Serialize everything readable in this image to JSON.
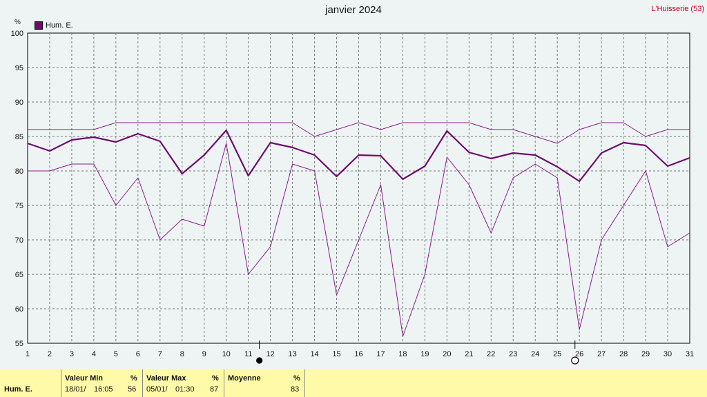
{
  "header": {
    "title": "janvier 2024",
    "station": "L'Huisserie (53)",
    "unit": "%"
  },
  "legend": {
    "label": "Hum. E.",
    "color": "#6e0c6e"
  },
  "chart_data": {
    "type": "line",
    "x": [
      1,
      2,
      3,
      4,
      5,
      6,
      7,
      8,
      9,
      10,
      11,
      12,
      13,
      14,
      15,
      16,
      17,
      18,
      19,
      20,
      21,
      22,
      23,
      24,
      25,
      26,
      27,
      28,
      29,
      30,
      31
    ],
    "xticks": [
      "1",
      "2",
      "3",
      "4",
      "5",
      "6",
      "7",
      "8",
      "9",
      "10",
      "11",
      "12",
      "13",
      "14",
      "15",
      "16",
      "17",
      "18",
      "19",
      "20",
      "21",
      "22",
      "23",
      "24",
      "25",
      "26",
      "27",
      "28",
      "29",
      "30",
      "31"
    ],
    "yticks": [
      "55",
      "60",
      "65",
      "70",
      "75",
      "80",
      "85",
      "90",
      "95",
      "100"
    ],
    "ylim": [
      55,
      100
    ],
    "xlim": [
      1,
      31
    ],
    "grid": true,
    "series": [
      {
        "name": "Hum. E.",
        "role": "max",
        "color": "#8a1a8a",
        "values": [
          86,
          86,
          86,
          86,
          87,
          87,
          87,
          87,
          87,
          87,
          87,
          87,
          87,
          85,
          86,
          87,
          86,
          87,
          87,
          87,
          87,
          86,
          86,
          85,
          84,
          86,
          87,
          87,
          85,
          86,
          86
        ]
      },
      {
        "name": "Hum. E.",
        "role": "mean",
        "color": "#6e0c6e",
        "values": [
          84,
          82.9,
          84.5,
          84.9,
          84.2,
          85.4,
          84.3,
          79.6,
          82.3,
          85.9,
          79.3,
          84.1,
          83.4,
          82.3,
          79.2,
          82.3,
          82.2,
          78.8,
          80.7,
          85.8,
          82.7,
          81.8,
          82.6,
          82.3,
          80.6,
          78.5,
          82.6,
          84.1,
          83.7,
          80.7,
          81.9
        ]
      },
      {
        "name": "Hum. E.",
        "role": "min",
        "color": "#8a1a8a",
        "values": [
          80,
          80,
          81,
          81,
          75,
          79,
          70,
          73,
          72,
          84,
          65,
          69,
          81,
          80,
          62,
          70,
          78,
          56,
          65,
          82,
          78,
          71,
          79,
          81,
          79,
          57,
          70,
          75,
          80,
          69,
          71
        ]
      }
    ],
    "markers": [
      {
        "x": 11.5,
        "symbol": "full-moon-icon"
      },
      {
        "x": 25.8,
        "symbol": "new-moon-icon"
      }
    ]
  },
  "summary": {
    "row_label": "Hum. E.",
    "min": {
      "header": "Valeur Min",
      "unit": "%",
      "date": "18/01/",
      "time": "16:05",
      "value": "56"
    },
    "max": {
      "header": "Valeur Max",
      "unit": "%",
      "date": "05/01/",
      "time": "01:30",
      "value": "87"
    },
    "mean": {
      "header": "Moyenne",
      "unit": "%",
      "value": "83"
    }
  }
}
